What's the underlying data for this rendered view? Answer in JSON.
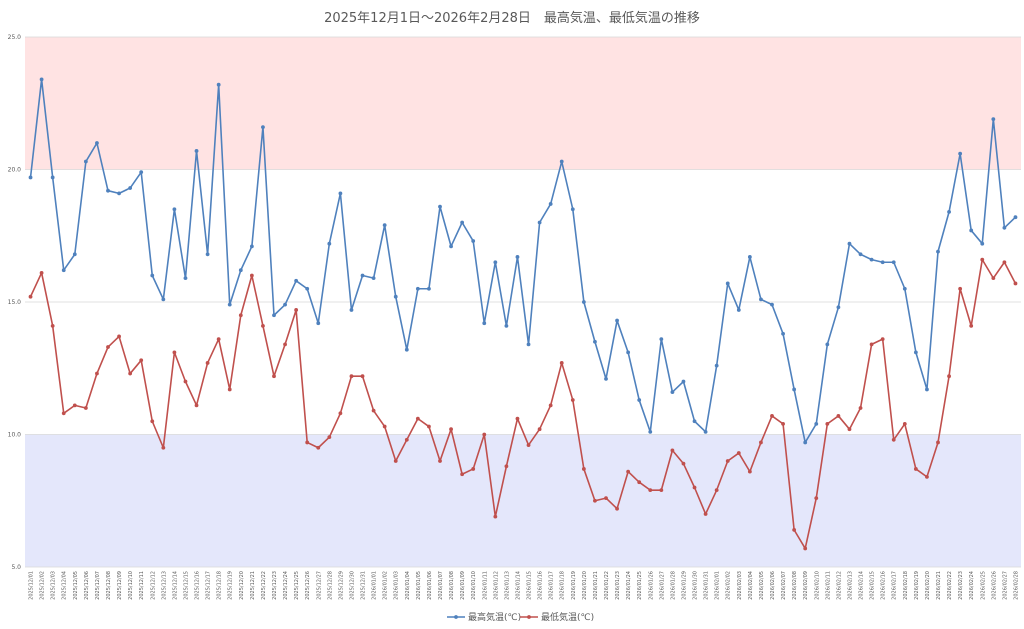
{
  "chart_data": {
    "type": "line",
    "title": "2025年12月1日～2026年2月28日　最高気温、最低気温の推移",
    "ylim": [
      5.0,
      25.0
    ],
    "yticks": [
      "5.0",
      "10.0",
      "15.0",
      "20.0",
      "25.0"
    ],
    "bands": [
      {
        "from": 20.0,
        "to": 25.0,
        "color": "#ffe3e3"
      },
      {
        "from": 5.0,
        "to": 10.0,
        "color": "#e4e7fb"
      }
    ],
    "grid": true,
    "legend_position": "bottom",
    "categories": [
      "2025/12/01",
      "2025/12/02",
      "2025/12/03",
      "2025/12/04",
      "2025/12/05",
      "2025/12/06",
      "2025/12/07",
      "2025/12/08",
      "2025/12/09",
      "2025/12/10",
      "2025/12/11",
      "2025/12/12",
      "2025/12/13",
      "2025/12/14",
      "2025/12/15",
      "2025/12/16",
      "2025/12/17",
      "2025/12/18",
      "2025/12/19",
      "2025/12/20",
      "2025/12/21",
      "2025/12/22",
      "2025/12/23",
      "2025/12/24",
      "2025/12/25",
      "2025/12/26",
      "2025/12/27",
      "2025/12/28",
      "2025/12/29",
      "2025/12/30",
      "2025/12/31",
      "2026/01/01",
      "2026/01/02",
      "2026/01/03",
      "2026/01/04",
      "2026/01/05",
      "2026/01/06",
      "2026/01/07",
      "2026/01/08",
      "2026/01/09",
      "2026/01/10",
      "2026/01/11",
      "2026/01/12",
      "2026/01/13",
      "2026/01/14",
      "2026/01/15",
      "2026/01/16",
      "2026/01/17",
      "2026/01/18",
      "2026/01/19",
      "2026/01/20",
      "2026/01/21",
      "2026/01/22",
      "2026/01/23",
      "2026/01/24",
      "2026/01/25",
      "2026/01/26",
      "2026/01/27",
      "2026/01/28",
      "2026/01/29",
      "2026/01/30",
      "2026/01/31",
      "2026/02/01",
      "2026/02/02",
      "2026/02/03",
      "2026/02/04",
      "2026/02/05",
      "2026/02/06",
      "2026/02/07",
      "2026/02/08",
      "2026/02/09",
      "2026/02/10",
      "2026/02/11",
      "2026/02/12",
      "2026/02/13",
      "2026/02/14",
      "2026/02/15",
      "2026/02/16",
      "2026/02/17",
      "2026/02/18",
      "2026/02/19",
      "2026/02/20",
      "2026/02/21",
      "2026/02/22",
      "2026/02/23",
      "2026/02/24",
      "2026/02/25",
      "2026/02/26",
      "2026/02/27",
      "2026/02/28"
    ],
    "series": [
      {
        "name": "最高気温(℃)",
        "color": "#4f81bd",
        "values": [
          19.7,
          23.4,
          19.7,
          16.2,
          16.8,
          20.3,
          21.0,
          19.2,
          19.1,
          19.3,
          19.9,
          16.0,
          15.1,
          18.5,
          15.9,
          20.7,
          16.8,
          23.2,
          14.9,
          16.2,
          17.1,
          21.6,
          14.5,
          14.9,
          15.8,
          15.5,
          14.2,
          17.2,
          19.1,
          14.7,
          16.0,
          15.9,
          17.9,
          15.2,
          13.2,
          15.5,
          15.5,
          18.6,
          17.1,
          18.0,
          17.3,
          14.2,
          16.5,
          14.1,
          16.7,
          13.4,
          18.0,
          18.7,
          20.3,
          18.5,
          15.0,
          13.5,
          12.1,
          14.3,
          13.1,
          11.3,
          10.1,
          13.6,
          11.6,
          12.0,
          10.5,
          10.1,
          12.6,
          15.7,
          14.7,
          16.7,
          15.1,
          14.9,
          13.8,
          11.7,
          9.7,
          10.4,
          13.4,
          14.8,
          17.2,
          16.8,
          16.6,
          16.5,
          16.5,
          15.5,
          13.1,
          11.7,
          16.9,
          18.4,
          20.6,
          17.7,
          17.2,
          21.9,
          17.8,
          18.2
        ]
      },
      {
        "name": "最低気温(℃)",
        "color": "#c0504d",
        "values": [
          15.2,
          16.1,
          14.1,
          10.8,
          11.1,
          11.0,
          12.3,
          13.3,
          13.7,
          12.3,
          12.8,
          10.5,
          9.5,
          13.1,
          12.0,
          11.1,
          12.7,
          13.6,
          11.7,
          14.5,
          16.0,
          14.1,
          12.2,
          13.4,
          14.7,
          9.7,
          9.5,
          9.9,
          10.8,
          12.2,
          12.2,
          10.9,
          10.3,
          9.0,
          9.8,
          10.6,
          10.3,
          9.0,
          10.2,
          8.5,
          8.7,
          10.0,
          6.9,
          8.8,
          10.6,
          9.6,
          10.2,
          11.1,
          12.7,
          11.3,
          8.7,
          7.5,
          7.6,
          7.2,
          8.6,
          8.2,
          7.9,
          7.9,
          9.4,
          8.9,
          8.0,
          7.0,
          7.9,
          9.0,
          9.3,
          8.6,
          9.7,
          10.7,
          10.4,
          6.4,
          5.7,
          7.6,
          10.4,
          10.7,
          10.2,
          11.0,
          13.4,
          13.6,
          9.8,
          10.4,
          8.7,
          8.4,
          9.7,
          12.2,
          15.5,
          14.1,
          16.6,
          15.9,
          16.5,
          15.7
        ]
      }
    ]
  }
}
